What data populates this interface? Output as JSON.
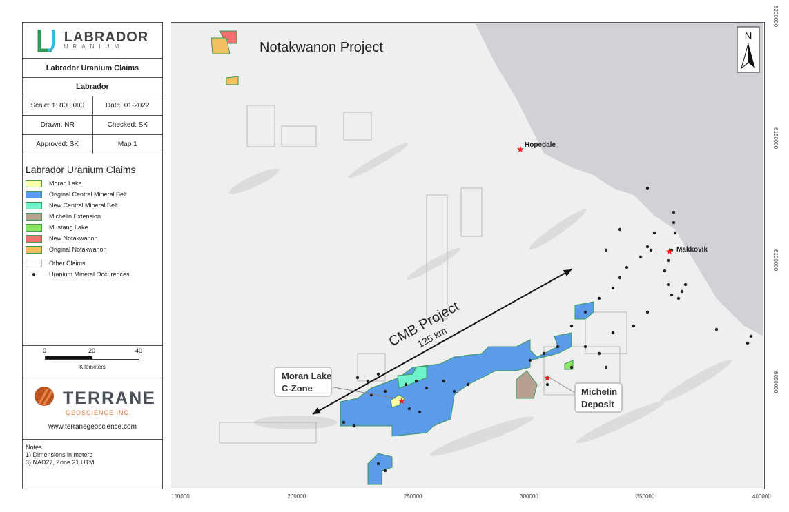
{
  "panel": {
    "logo_title": "LABRADOR",
    "logo_sub": "URANIUM",
    "title": "Labrador Uranium Claims",
    "region": "Labrador",
    "scale": "Scale: 1: 800,000",
    "date": "Date: 01-2022",
    "drawn": "Drawn: NR",
    "checked": "Checked: SK",
    "approved": "Approved: SK",
    "map_no": "Map 1"
  },
  "legend": {
    "title": "Labrador Uranium Claims",
    "items": [
      {
        "label": "Moran Lake",
        "color": "#ffffa8"
      },
      {
        "label": "Original Central Mineral Belt",
        "color": "#5b9bea"
      },
      {
        "label": "New Central Mineral Belt",
        "color": "#70f2cc"
      },
      {
        "label": "Michelin Extension",
        "color": "#b8a091"
      },
      {
        "label": "Mustang Lake",
        "color": "#8be560"
      },
      {
        "label": "New Notakwanon",
        "color": "#f07070"
      },
      {
        "label": "Original Notakwanon",
        "color": "#f5c060"
      }
    ],
    "other_claims": "Other Claims",
    "occurrences": "Uranium Mineral Occurences"
  },
  "scalebar": {
    "ticks": [
      "0",
      "20",
      "40"
    ],
    "unit": "Kilometers"
  },
  "terrane": {
    "name": "TERRANE",
    "sub": "GEOSCIENCE INC.",
    "url": "www.terranegeoscience.com"
  },
  "notes": {
    "title": "Notes",
    "lines": [
      "1) Dimensions in meters",
      "3) NAD27, Zone 21 UTM"
    ]
  },
  "map": {
    "title": "Notakwanon Project",
    "north": "N",
    "cmb_label": "CMB Project",
    "cmb_distance": "125 km",
    "moran": [
      "Moran Lake",
      "C-Zone"
    ],
    "michelin": [
      "Michelin",
      "Deposit"
    ],
    "towns": [
      "Hopedale",
      "Makkovik"
    ],
    "land_color": "#efefef",
    "sea_color": "#d2d2d6",
    "star_color": "#ff1a1a",
    "x_ticks": [
      "150000",
      "200000",
      "250000",
      "300000",
      "350000",
      "400000"
    ],
    "y_ticks": [
      "6200000",
      "6150000",
      "6100000",
      "6050000"
    ]
  }
}
